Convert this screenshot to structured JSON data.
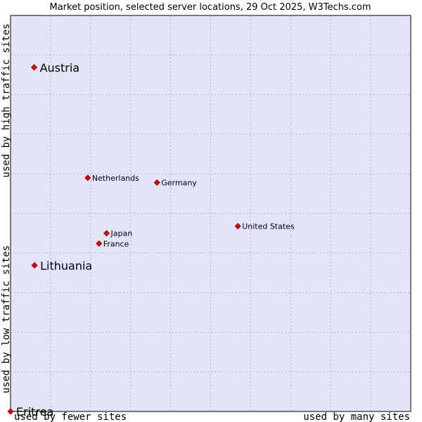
{
  "chart_data": {
    "type": "scatter",
    "title": "Market position, selected server locations, 29 Oct 2025, W3Techs.com",
    "xlabel_low": "used by fewer sites",
    "xlabel_high": "used by many sites",
    "ylabel_low": "used by low traffic sites",
    "ylabel_high": "used by high traffic sites",
    "xlim": [
      0,
      100
    ],
    "ylim": [
      0,
      100
    ],
    "grid": true,
    "background_color": "#e4e4f8",
    "grid_color": "#b0b0c8",
    "marker_color": "#e00000",
    "points": [
      {
        "name": "Austria",
        "x": 5.9,
        "y": 86.9,
        "highlight": true
      },
      {
        "name": "Netherlands",
        "x": 19.3,
        "y": 59.0,
        "highlight": false
      },
      {
        "name": "Germany",
        "x": 36.6,
        "y": 57.8,
        "highlight": false
      },
      {
        "name": "United States",
        "x": 56.8,
        "y": 46.8,
        "highlight": false
      },
      {
        "name": "Japan",
        "x": 24.0,
        "y": 45.0,
        "highlight": false
      },
      {
        "name": "France",
        "x": 22.1,
        "y": 42.4,
        "highlight": false
      },
      {
        "name": "Lithuania",
        "x": 6.0,
        "y": 36.9,
        "highlight": true
      },
      {
        "name": "Eritrea",
        "x": 0.0,
        "y": 0.0,
        "highlight": true
      }
    ]
  }
}
